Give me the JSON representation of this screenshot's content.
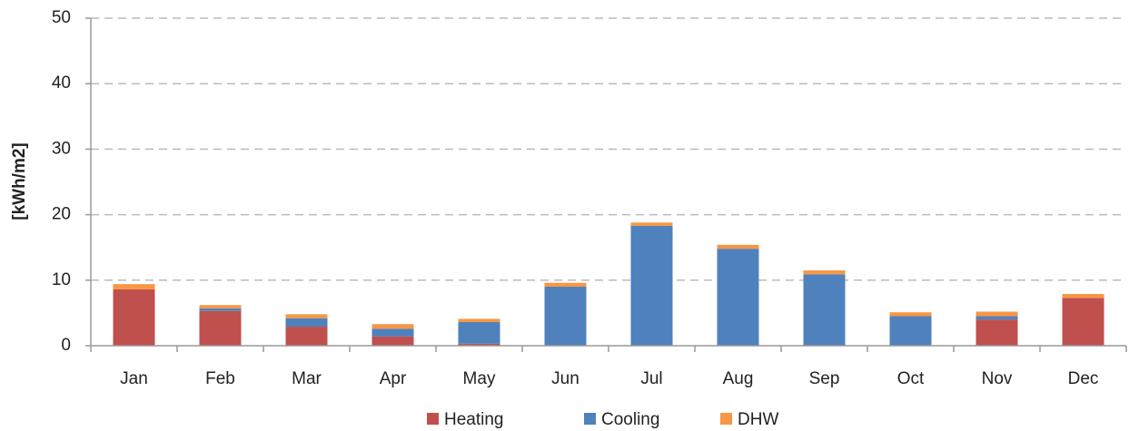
{
  "chart_data": {
    "type": "stacked_bar",
    "y_label": "[kWh/m2]",
    "categories": [
      "Jan",
      "Feb",
      "Mar",
      "Apr",
      "May",
      "Jun",
      "Jul",
      "Aug",
      "Sep",
      "Oct",
      "Nov",
      "Dec"
    ],
    "series": [
      {
        "name": "Heating",
        "color": "#c0504d",
        "values": [
          8.6,
          5.3,
          2.9,
          1.4,
          0.3,
          0,
          0,
          0,
          0,
          0,
          4.0,
          7.3
        ]
      },
      {
        "name": "Cooling",
        "color": "#4f81bd",
        "values": [
          0,
          0.4,
          1.3,
          1.2,
          3.3,
          9.0,
          18.3,
          14.8,
          10.9,
          4.5,
          0.5,
          0
        ]
      },
      {
        "name": "DHW",
        "color": "#f79646",
        "values": [
          0.8,
          0.5,
          0.6,
          0.7,
          0.5,
          0.6,
          0.5,
          0.6,
          0.6,
          0.6,
          0.7,
          0.6
        ]
      }
    ],
    "ylim": [
      0,
      50
    ],
    "yticks": [
      0,
      10,
      20,
      30,
      40,
      50
    ],
    "grid": true,
    "legend": "bottom"
  }
}
